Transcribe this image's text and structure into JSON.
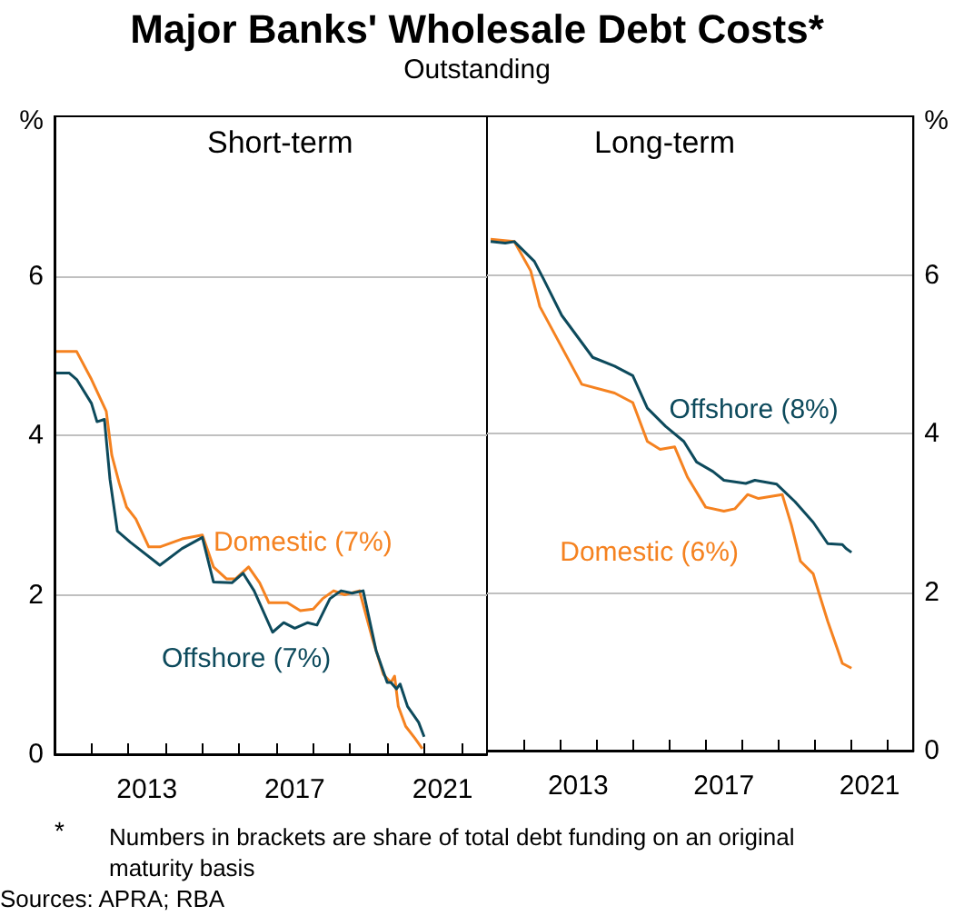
{
  "chart_data": [
    {
      "type": "line",
      "title": "Major Banks' Wholesale Debt Costs*",
      "subtitle": "Outstanding",
      "ylabel": "%",
      "annotations": [
        "Short-term",
        "* Numbers in brackets are share of total debt funding on an original maturity basis",
        "Sources: APRA; RBA"
      ],
      "xlim": [
        2011,
        2022.7
      ],
      "xticks": [
        {
          "value": 2012,
          "label": null
        },
        {
          "value": 2013,
          "label": null
        },
        {
          "value": 2013.5,
          "label": "2013"
        },
        {
          "value": 2014,
          "label": null
        },
        {
          "value": 2015,
          "label": null
        },
        {
          "value": 2016,
          "label": null
        },
        {
          "value": 2017,
          "label": null
        },
        {
          "value": 2017.5,
          "label": "2017"
        },
        {
          "value": 2018,
          "label": null
        },
        {
          "value": 2019,
          "label": null
        },
        {
          "value": 2020,
          "label": null
        },
        {
          "value": 2021,
          "label": null
        },
        {
          "value": 2021.5,
          "label": "2021"
        },
        {
          "value": 2022,
          "label": null
        }
      ],
      "ylim": [
        0,
        8
      ],
      "yticks": [
        0,
        2,
        4,
        6
      ],
      "grid": "y",
      "legend": false,
      "line_style": "solid",
      "series": [
        {
          "name": "Offshore (7%)",
          "color": "#0d4a5c",
          "x": [
            2011.05,
            2011.4,
            2011.6,
            2012,
            2012.15,
            2012.35,
            2012.5,
            2012.7,
            2013.05,
            2013.85,
            2014.45,
            2015,
            2015.3,
            2015.8,
            2016.1,
            2016.4,
            2016.9,
            2017.2,
            2017.5,
            2017.85,
            2018.1,
            2018.45,
            2018.75,
            2019.05,
            2019.35,
            2019.7,
            2020,
            2020.1,
            2020.25,
            2020.35,
            2020.55,
            2020.85,
            2021
          ],
          "values": [
            4.78,
            4.78,
            4.7,
            4.4,
            4.17,
            4.2,
            3.45,
            2.8,
            2.66,
            2.37,
            2.58,
            2.72,
            2.16,
            2.15,
            2.27,
            2.05,
            1.53,
            1.65,
            1.58,
            1.65,
            1.62,
            1.95,
            2.05,
            2.02,
            2.05,
            1.3,
            0.9,
            0.9,
            0.82,
            0.88,
            0.6,
            0.4,
            0.22
          ]
        },
        {
          "name": "Domestic (7%)",
          "color": "#f58220",
          "x": [
            2011.05,
            2011.5,
            2011.6,
            2012,
            2012.3,
            2012.4,
            2012.55,
            2012.75,
            2012.95,
            2013.2,
            2013.55,
            2013.85,
            2014.45,
            2015,
            2015.3,
            2015.65,
            2015.9,
            2016.25,
            2016.55,
            2016.8,
            2017.3,
            2017.65,
            2018,
            2018.25,
            2018.55,
            2018.85,
            2019.25,
            2019.6,
            2019.9,
            2020.1,
            2020.2,
            2020.3,
            2020.5,
            2020.75,
            2020.95
          ],
          "values": [
            5.05,
            5.05,
            5.05,
            4.7,
            4.4,
            4.3,
            3.75,
            3.4,
            3.1,
            2.95,
            2.6,
            2.6,
            2.7,
            2.75,
            2.35,
            2.2,
            2.2,
            2.35,
            2.15,
            1.9,
            1.9,
            1.8,
            1.82,
            1.95,
            2.05,
            2.0,
            2.05,
            1.45,
            1.0,
            0.9,
            0.98,
            0.6,
            0.35,
            0.2,
            0.07
          ]
        }
      ]
    },
    {
      "type": "line",
      "ylabel": "%",
      "annotations": [
        "Long-term"
      ],
      "xlim": [
        2011,
        2022.7
      ],
      "xticks": [
        {
          "value": 2012,
          "label": null
        },
        {
          "value": 2013,
          "label": null
        },
        {
          "value": 2013.5,
          "label": "2013"
        },
        {
          "value": 2014,
          "label": null
        },
        {
          "value": 2015,
          "label": null
        },
        {
          "value": 2016,
          "label": null
        },
        {
          "value": 2017,
          "label": null
        },
        {
          "value": 2017.5,
          "label": "2017"
        },
        {
          "value": 2018,
          "label": null
        },
        {
          "value": 2019,
          "label": null
        },
        {
          "value": 2020,
          "label": null
        },
        {
          "value": 2021,
          "label": null
        },
        {
          "value": 2021.5,
          "label": "2021"
        },
        {
          "value": 2022,
          "label": null
        }
      ],
      "ylim": [
        0,
        8
      ],
      "yticks": [
        0,
        2,
        4,
        6
      ],
      "grid": "y",
      "legend": false,
      "line_style": "solid",
      "series": [
        {
          "name": "Offshore (8%)",
          "color": "#0d4a5c",
          "x": [
            2011.1,
            2011.5,
            2011.75,
            2012.3,
            2012.55,
            2013.05,
            2013.9,
            2014.5,
            2015,
            2015.4,
            2015.9,
            2016.4,
            2016.75,
            2017.2,
            2017.5,
            2018.1,
            2018.35,
            2018.95,
            2019.45,
            2019.95,
            2020.35,
            2020.75,
            2020.85,
            2021
          ],
          "values": [
            6.42,
            6.4,
            6.42,
            6.17,
            5.95,
            5.49,
            4.96,
            4.85,
            4.73,
            4.32,
            4.09,
            3.9,
            3.64,
            3.52,
            3.41,
            3.37,
            3.41,
            3.36,
            3.14,
            2.88,
            2.61,
            2.6,
            2.55,
            2.5
          ]
        },
        {
          "name": "Domestic (6%)",
          "color": "#f58220",
          "x": [
            2011.1,
            2011.75,
            2012.2,
            2012.45,
            2013.6,
            2014.5,
            2015,
            2015.4,
            2015.75,
            2016.15,
            2016.5,
            2017,
            2017.5,
            2017.8,
            2018.15,
            2018.45,
            2019.1,
            2019.35,
            2019.6,
            2019.95,
            2020.1,
            2020.35,
            2020.6,
            2020.75,
            2021
          ],
          "values": [
            6.45,
            6.42,
            6.05,
            5.6,
            4.62,
            4.51,
            4.39,
            3.9,
            3.8,
            3.83,
            3.45,
            3.07,
            3.02,
            3.05,
            3.23,
            3.18,
            3.23,
            2.85,
            2.39,
            2.23,
            2.0,
            1.63,
            1.3,
            1.1,
            1.04
          ]
        }
      ]
    }
  ]
}
